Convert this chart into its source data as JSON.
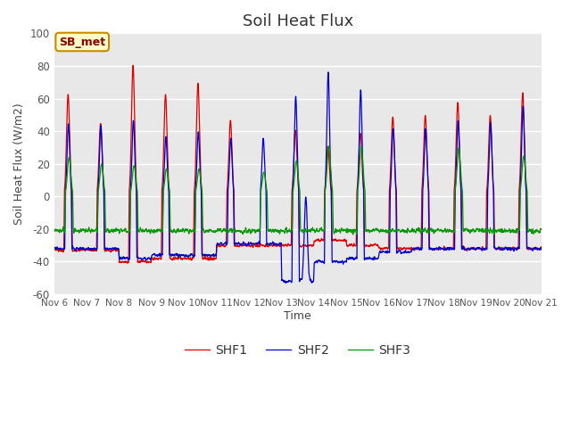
{
  "title": "Soil Heat Flux",
  "ylabel": "Soil Heat Flux (W/m2)",
  "xlabel": "Time",
  "ylim": [
    -60,
    100
  ],
  "yticks": [
    -60,
    -40,
    -20,
    0,
    20,
    40,
    60,
    80,
    100
  ],
  "x_tick_labels": [
    "Nov 6",
    "Nov 7",
    "Nov 8",
    "Nov 9",
    "Nov 10",
    "Nov 11",
    "Nov 12",
    "Nov 13",
    "Nov 14",
    "Nov 15",
    "Nov 16",
    "Nov 17",
    "Nov 18",
    "Nov 19",
    "Nov 20",
    "Nov 21"
  ],
  "annotation_text": "SB_met",
  "annotation_bg": "#ffffcc",
  "annotation_border": "#cc8800",
  "line_colors": [
    "#dd0000",
    "#0000cc",
    "#009900"
  ],
  "line_labels": [
    "SHF1",
    "SHF2",
    "SHF3"
  ],
  "fig_bg": "#ffffff",
  "plot_bg": "#e8e8e8",
  "title_fontsize": 13,
  "axis_fontsize": 9,
  "n_days": 15,
  "points_per_day": 144
}
